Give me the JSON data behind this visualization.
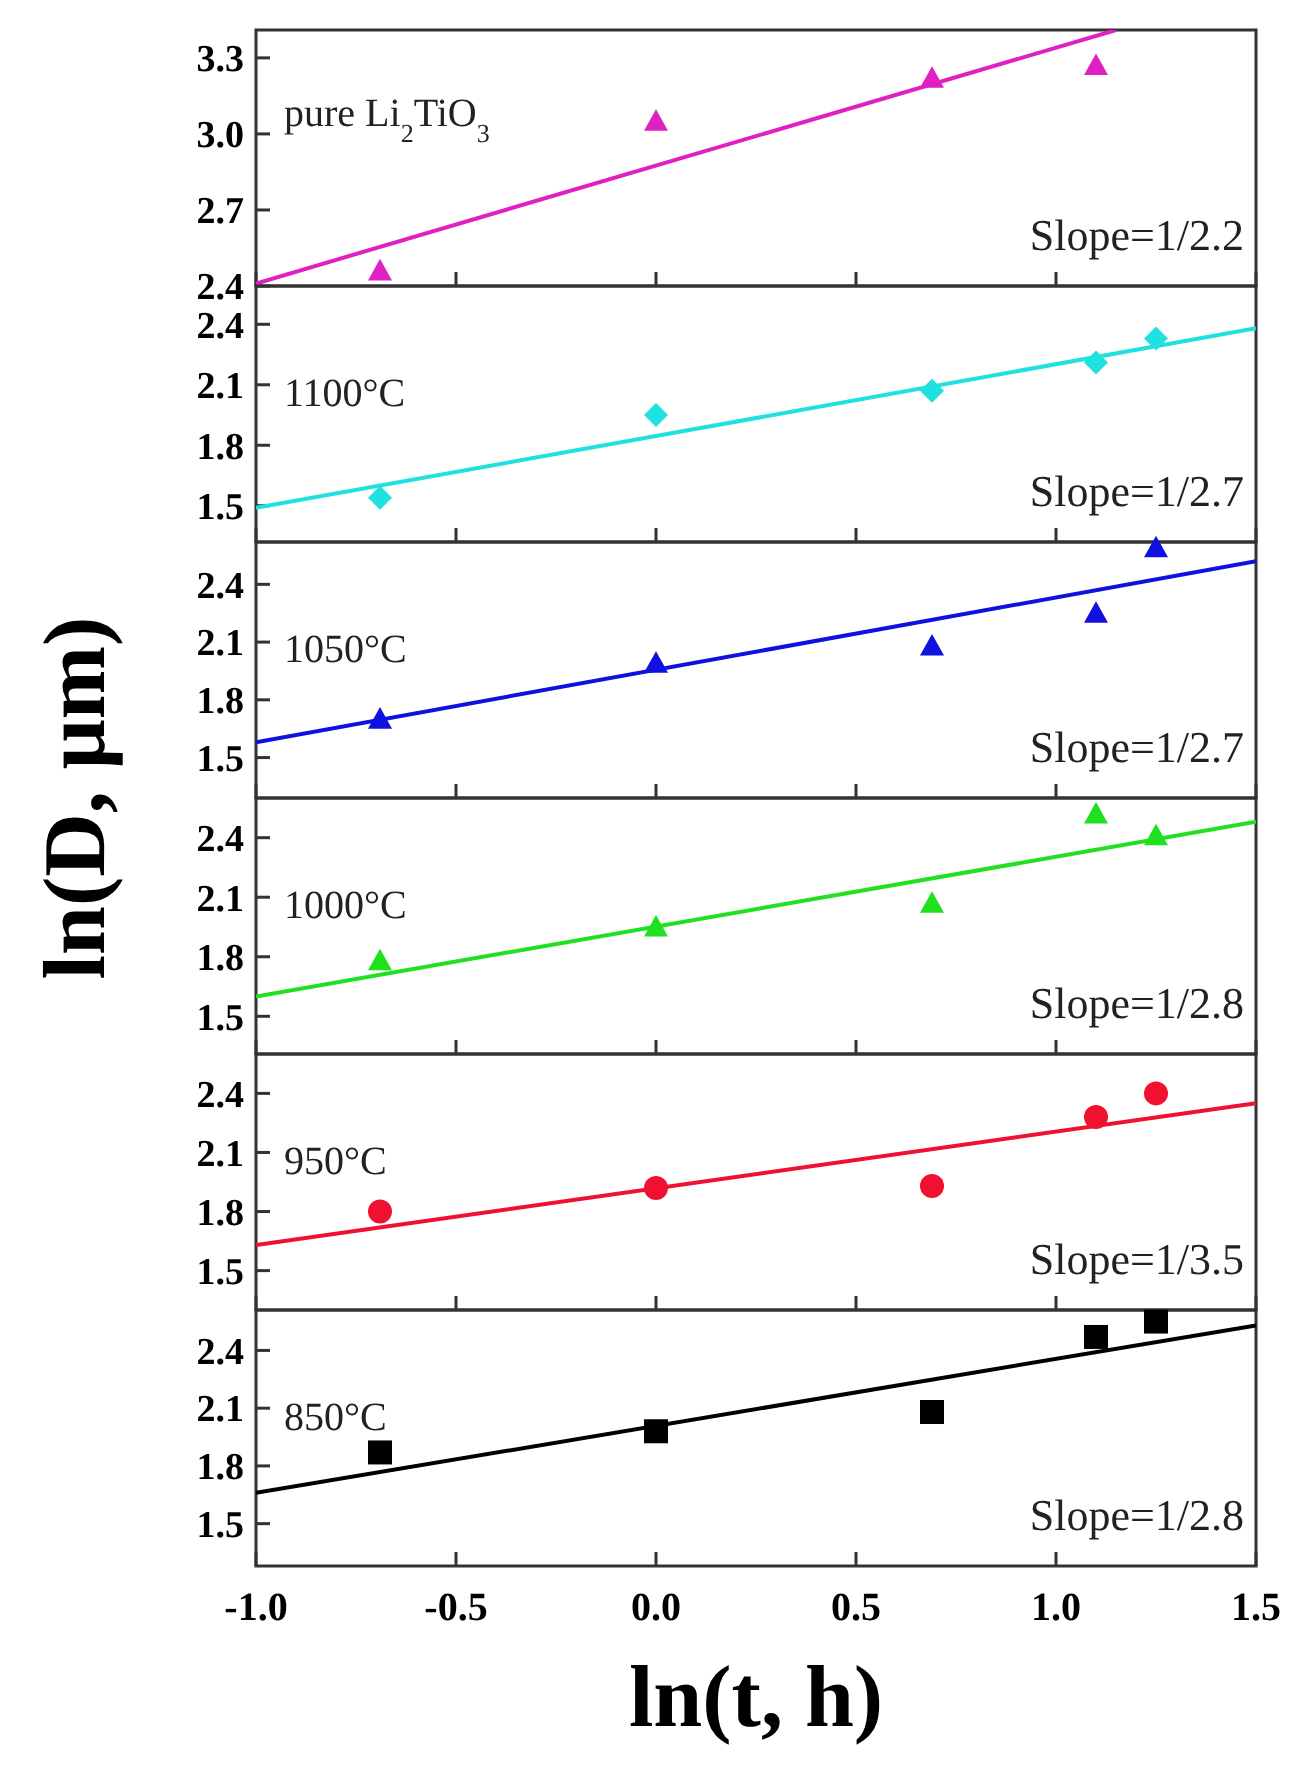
{
  "chart_data": [
    {
      "type": "scatter",
      "xlim": [
        -1,
        1.5
      ],
      "xticks": [
        -1,
        -0.5,
        0,
        0.5,
        1,
        1.5
      ],
      "ylim": [
        2.4,
        3.41
      ],
      "yticks": [
        2.4,
        2.7,
        {
          "value": 3,
          "label": "3.0"
        },
        3.3
      ],
      "tick_labels": "y",
      "annotations": [
        "pure Li$_{2}$TiO$_{3}$",
        "Slope=1/2.2"
      ],
      "series": [
        {
          "marker": "triangle",
          "color": "#e020c0",
          "x": [
            -0.69,
            0,
            0.69,
            1.1
          ],
          "values": [
            2.46,
            3.05,
            3.22,
            3.27
          ]
        },
        {
          "type": "line",
          "marker": "none",
          "color": "#e020c0",
          "x": [
            -1,
            1.15
          ],
          "values": [
            2.41,
            3.41
          ]
        }
      ]
    },
    {
      "type": "scatter",
      "xlim": [
        -1,
        1.5
      ],
      "xticks": [
        -1,
        -0.5,
        0,
        0.5,
        1,
        1.5
      ],
      "ylim": [
        1.32,
        2.59
      ],
      "yticks": [
        1.5,
        1.8,
        2.1,
        2.4
      ],
      "tick_labels": "y",
      "annotations": [
        "1100°C",
        "Slope=1/2.7"
      ],
      "series": [
        {
          "marker": "diamond",
          "color": "#20e0e0",
          "x": [
            -0.69,
            0,
            0.69,
            1.1,
            1.25
          ],
          "values": [
            1.54,
            1.95,
            2.07,
            2.21,
            2.33
          ]
        },
        {
          "type": "line",
          "marker": "none",
          "color": "#20e0e0",
          "x": [
            -1,
            1.5
          ],
          "values": [
            1.49,
            2.38
          ]
        }
      ]
    },
    {
      "type": "scatter",
      "xlim": [
        -1,
        1.5
      ],
      "xticks": [
        -1,
        -0.5,
        0,
        0.5,
        1,
        1.5
      ],
      "ylim": [
        1.29,
        2.62
      ],
      "yticks": [
        1.5,
        1.8,
        2.1,
        2.4
      ],
      "tick_labels": "y",
      "annotations": [
        "1050°C",
        "Slope=1/2.7"
      ],
      "series": [
        {
          "marker": "triangle",
          "color": "#1010e0",
          "x": [
            -0.69,
            0,
            0.69,
            1.1,
            1.25
          ],
          "values": [
            1.7,
            1.99,
            2.08,
            2.25,
            2.59
          ]
        },
        {
          "type": "line",
          "marker": "none",
          "color": "#1010e0",
          "x": [
            -1,
            1.5
          ],
          "values": [
            1.58,
            2.52
          ]
        }
      ]
    },
    {
      "type": "scatter",
      "xlim": [
        -1,
        1.5
      ],
      "xticks": [
        -1,
        -0.5,
        0,
        0.5,
        1,
        1.5
      ],
      "ylim": [
        1.31,
        2.6
      ],
      "yticks": [
        1.5,
        1.8,
        2.1,
        2.4
      ],
      "tick_labels": "y",
      "annotations": [
        "1000°C",
        "Slope=1/2.8"
      ],
      "series": [
        {
          "marker": "triangle",
          "color": "#20e020",
          "x": [
            -0.69,
            0,
            0.69,
            1.1,
            1.25
          ],
          "values": [
            1.78,
            1.95,
            2.07,
            2.52,
            2.41
          ]
        },
        {
          "type": "line",
          "marker": "none",
          "color": "#20e020",
          "x": [
            -1,
            1.5
          ],
          "values": [
            1.6,
            2.48
          ]
        }
      ]
    },
    {
      "type": "scatter",
      "xlim": [
        -1,
        1.5
      ],
      "xticks": [
        -1,
        -0.5,
        0,
        0.5,
        1,
        1.5
      ],
      "ylim": [
        1.3,
        2.6
      ],
      "yticks": [
        1.5,
        1.8,
        2.1,
        2.4
      ],
      "tick_labels": "y",
      "annotations": [
        "950°C",
        "Slope=1/3.5"
      ],
      "series": [
        {
          "marker": "circle",
          "color": "#f01030",
          "x": [
            -0.69,
            0,
            0.69,
            1.1,
            1.25
          ],
          "values": [
            1.8,
            1.92,
            1.93,
            2.28,
            2.4
          ]
        },
        {
          "type": "line",
          "marker": "none",
          "color": "#f01030",
          "x": [
            -1,
            1.5
          ],
          "values": [
            1.63,
            2.35
          ]
        }
      ]
    },
    {
      "type": "scatter",
      "xlim": [
        -1,
        1.5
      ],
      "xticks": [
        {
          "value": -1,
          "label": "-1.0"
        },
        -0.5,
        {
          "value": 0,
          "label": "0.0"
        },
        0.5,
        {
          "value": 1,
          "label": "1.0"
        },
        1.5
      ],
      "ylim": [
        1.28,
        2.61
      ],
      "yticks": [
        1.5,
        1.8,
        2.1,
        2.4
      ],
      "xlabel": "ln(t, h)",
      "ylabel": "ln(D, μm)",
      "annotations": [
        "850°C",
        "Slope=1/2.8"
      ],
      "series": [
        {
          "marker": "square",
          "color": "#000000",
          "x": [
            -0.69,
            0,
            0.69,
            1.1,
            1.25
          ],
          "values": [
            1.87,
            1.98,
            2.08,
            2.47,
            2.55
          ]
        },
        {
          "type": "line",
          "marker": "none",
          "color": "#000000",
          "x": [
            -1,
            1.5
          ],
          "values": [
            1.66,
            2.53
          ]
        }
      ]
    }
  ]
}
